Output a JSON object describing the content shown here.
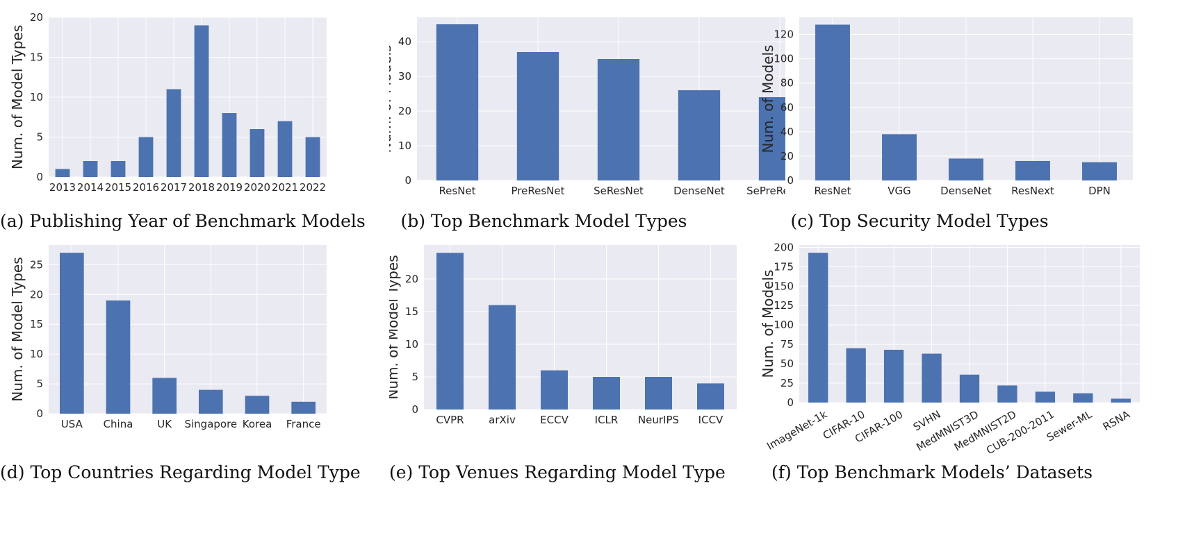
{
  "colors": {
    "bar": "#4c72b0",
    "plot_bg": "#eaeaf2",
    "grid": "#ffffff"
  },
  "chart_data": [
    {
      "type": "bar",
      "caption": "(a) Publishing Year of Benchmark Models",
      "ylabel": "Num. of Model Types",
      "categories": [
        "2013",
        "2014",
        "2015",
        "2016",
        "2017",
        "2018",
        "2019",
        "2020",
        "2021",
        "2022"
      ],
      "values": [
        1,
        2,
        2,
        5,
        11,
        19,
        8,
        6,
        7,
        5
      ],
      "ylim": [
        0,
        20
      ],
      "yticks": [
        0,
        5,
        10,
        15,
        20
      ],
      "grid": true
    },
    {
      "type": "bar",
      "caption": "(b) Top Benchmark Model Types",
      "ylabel": "Num. of Models",
      "categories": [
        "ResNet",
        "PreResNet",
        "SeResNet",
        "DenseNet",
        "SePreResNet"
      ],
      "values": [
        45,
        37,
        35,
        26,
        24
      ],
      "ylim": [
        0,
        47
      ],
      "yticks": [
        0,
        10,
        20,
        30,
        40
      ],
      "grid": true
    },
    {
      "type": "bar",
      "caption": "(c) Top Security Model Types",
      "ylabel": "Num. of Models",
      "categories": [
        "ResNet",
        "VGG",
        "DenseNet",
        "ResNext",
        "DPN"
      ],
      "values": [
        128,
        38,
        18,
        16,
        15
      ],
      "ylim": [
        0,
        134
      ],
      "yticks": [
        0,
        20,
        40,
        60,
        80,
        100,
        120
      ],
      "grid": true
    },
    {
      "type": "bar",
      "caption": "(d) Top Countries Regarding Model Type",
      "ylabel": "Num. of Model Types",
      "categories": [
        "USA",
        "China",
        "UK",
        "Singapore",
        "Korea",
        "France"
      ],
      "values": [
        27,
        19,
        6,
        4,
        3,
        2
      ],
      "ylim": [
        0,
        28.3
      ],
      "yticks": [
        0,
        5,
        10,
        15,
        20,
        25
      ],
      "grid": true
    },
    {
      "type": "bar",
      "caption": "(e) Top Venues Regarding Model Type",
      "ylabel": "Num. of Model Types",
      "categories": [
        "CVPR",
        "arXiv",
        "ECCV",
        "ICLR",
        "NeurIPS",
        "ICCV"
      ],
      "values": [
        24,
        16,
        6,
        5,
        5,
        4
      ],
      "ylim": [
        0,
        25.2
      ],
      "yticks": [
        0,
        5,
        10,
        15,
        20
      ],
      "grid": true
    },
    {
      "type": "bar",
      "caption": "(f) Top Benchmark Models’ Datasets",
      "ylabel": "Num. of Models",
      "categories": [
        "ImageNet-1k",
        "CIFAR-10",
        "CIFAR-100",
        "SVHN",
        "MedMNIST3D",
        "MedMNIST2D",
        "CUB-200-2011",
        "Sewer-ML",
        "RSNA"
      ],
      "values": [
        193,
        70,
        68,
        63,
        36,
        22,
        14,
        12,
        5
      ],
      "ylim": [
        0,
        203
      ],
      "yticks": [
        0,
        25,
        50,
        75,
        100,
        125,
        150,
        175,
        200
      ],
      "grid": true,
      "xtick_rotation": -30
    }
  ]
}
